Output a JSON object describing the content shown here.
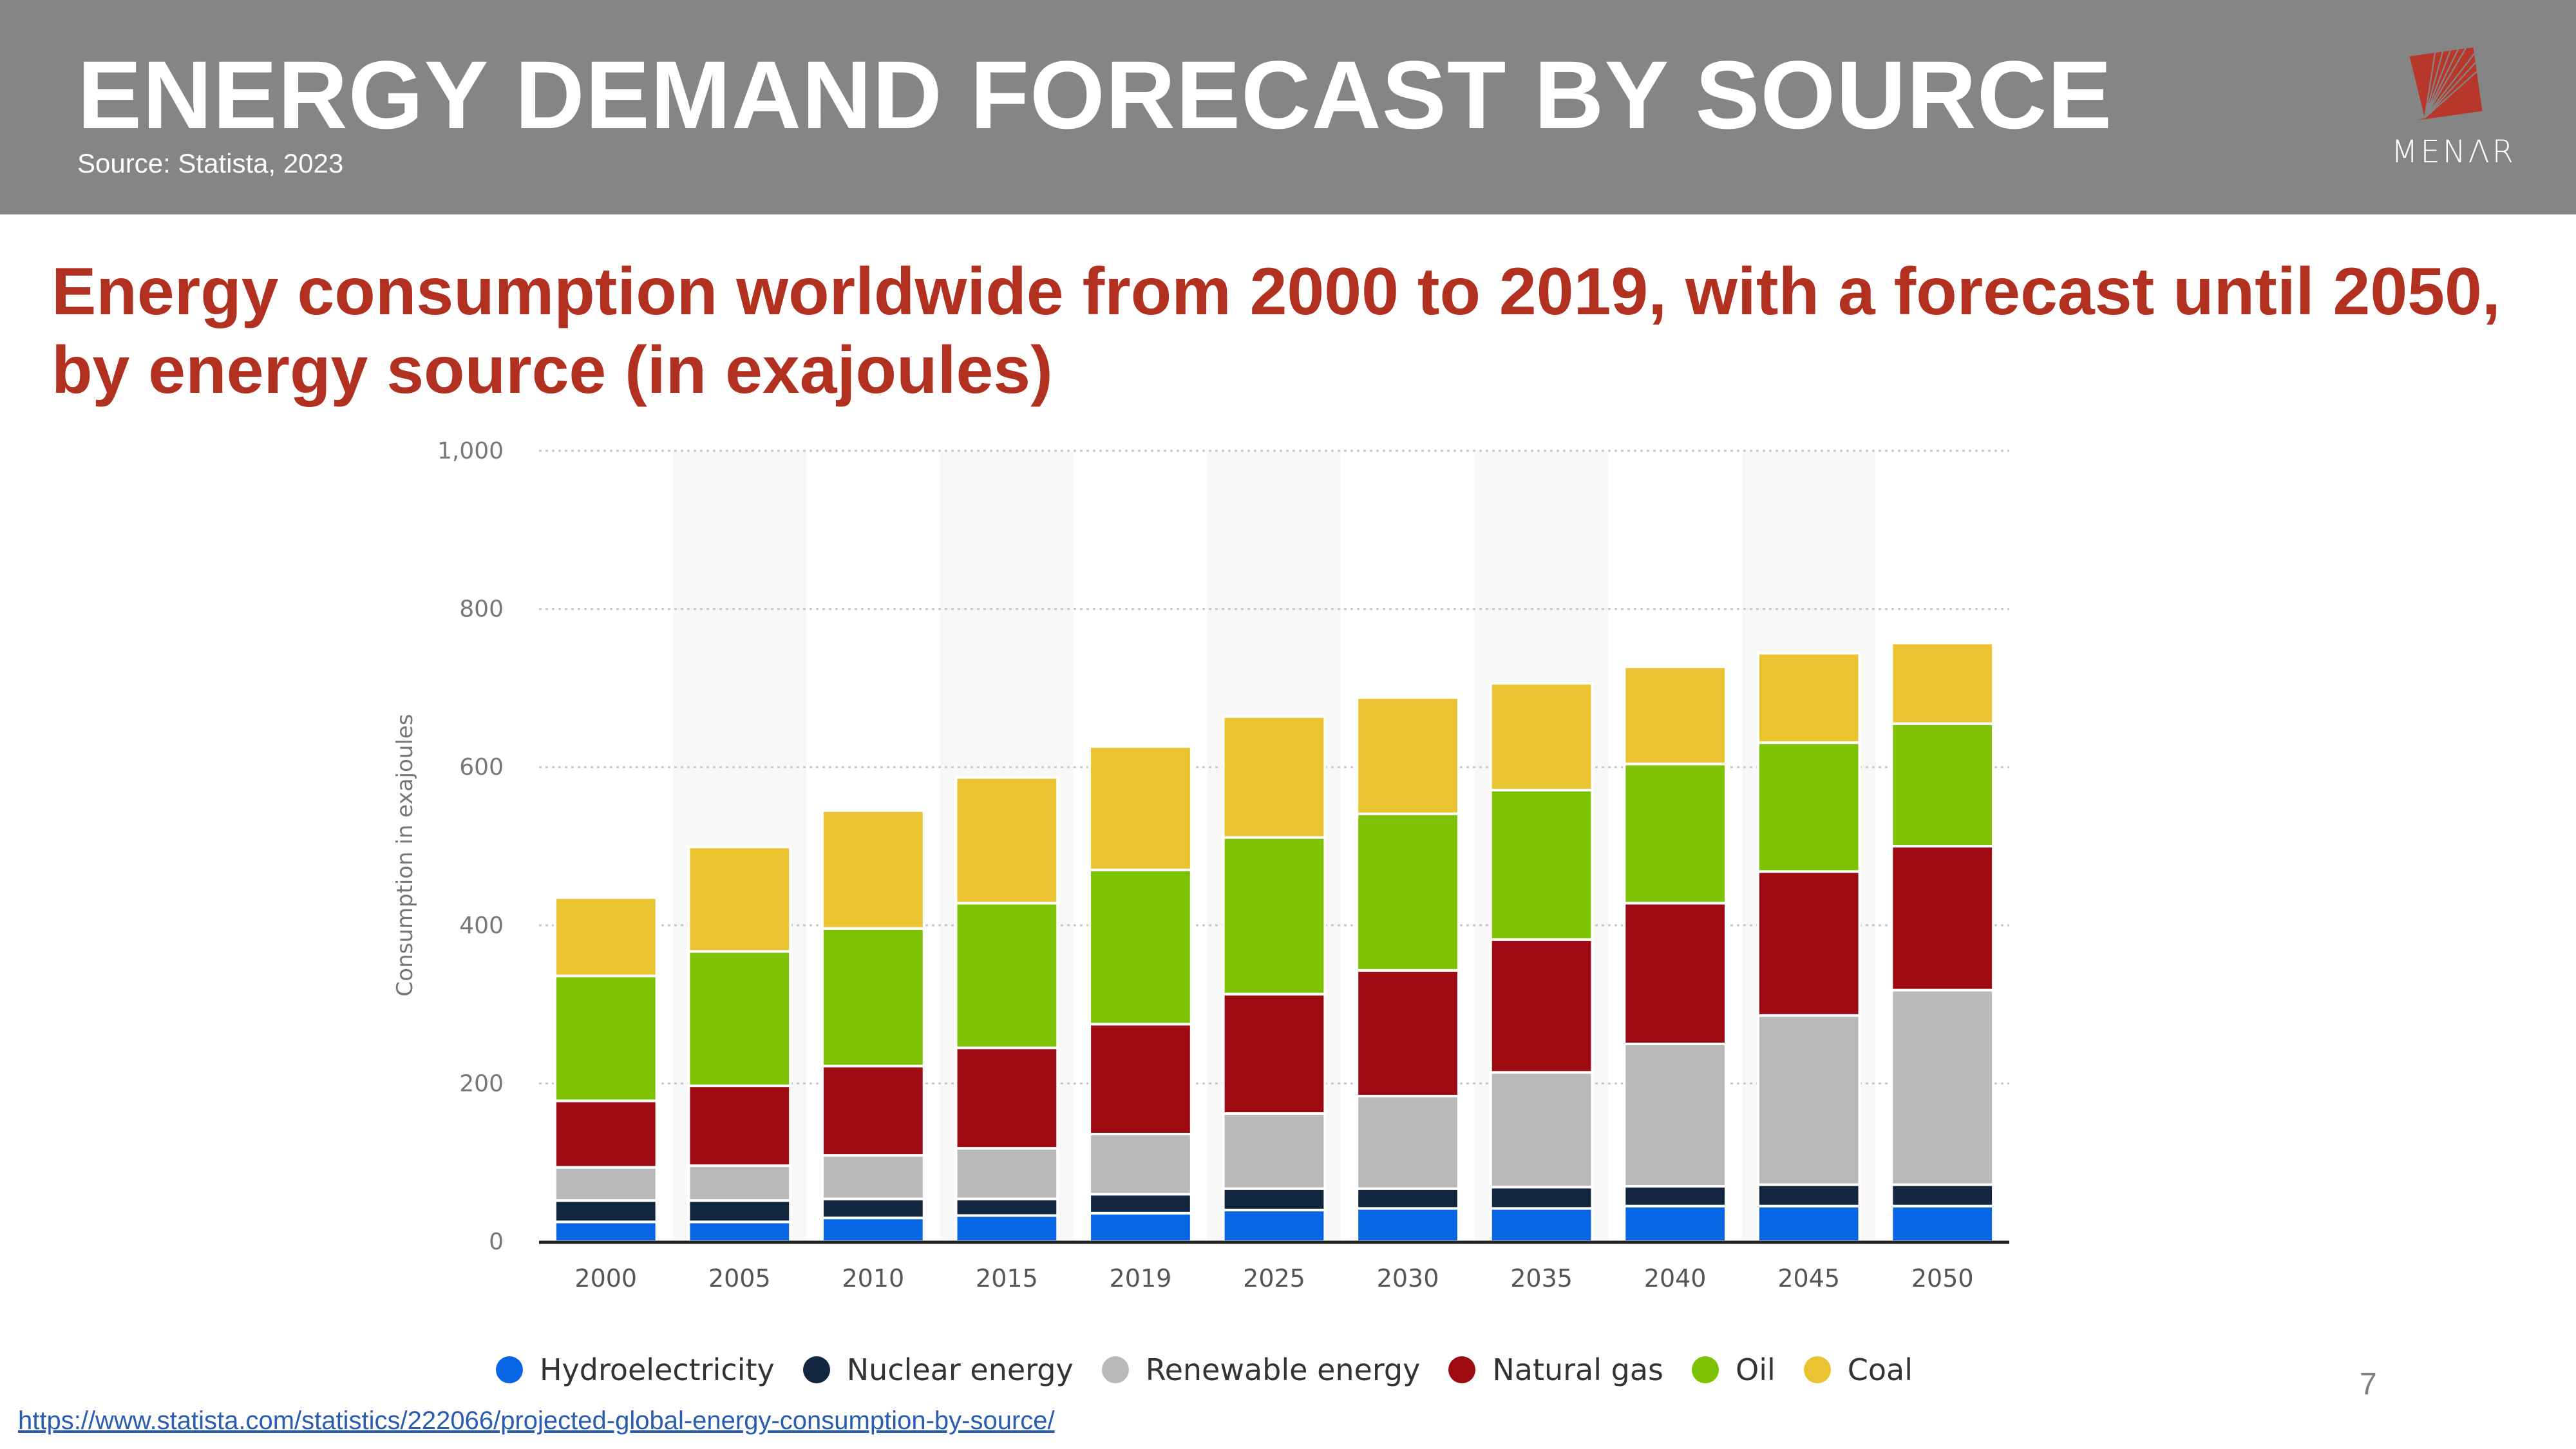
{
  "header": {
    "title": "ENERGY DEMAND FORECAST BY SOURCE",
    "source": "Source: Statista, 2023",
    "logo_text": "MENΛR",
    "logo_icon": "menar-logo-icon",
    "background_color": "#858585",
    "logo_color": "#b7382a"
  },
  "subtitle": "Energy consumption worldwide from 2000 to 2019, with a forecast until 2050, by energy source (in exajoules)",
  "footer": {
    "link": "https://www.statista.com/statistics/222066/projected-global-energy-consumption-by-source/",
    "page_number": "7"
  },
  "chart_data": {
    "type": "bar",
    "stacked": true,
    "title": "",
    "xlabel": "",
    "ylabel": "Consumption in exajoules",
    "ylim": [
      0,
      1000
    ],
    "yticks": [
      0,
      200,
      400,
      600,
      800,
      1000
    ],
    "ytick_labels": [
      "0",
      "200",
      "400",
      "600",
      "800",
      "1,000"
    ],
    "grid": true,
    "legend_position": "bottom",
    "categories": [
      "2000",
      "2005",
      "2010",
      "2015",
      "2019",
      "2025",
      "2030",
      "2035",
      "2040",
      "2045",
      "2050"
    ],
    "series": [
      {
        "name": "Hydroelectricity",
        "color": "#0866e4",
        "values": [
          25,
          25,
          30,
          33,
          36,
          40,
          42,
          42,
          45,
          45,
          45
        ]
      },
      {
        "name": "Nuclear energy",
        "color": "#12263f",
        "values": [
          27,
          27,
          24,
          21,
          24,
          27,
          25,
          27,
          25,
          27,
          27
        ]
      },
      {
        "name": "Renewable energy",
        "color": "#b9b9b9",
        "values": [
          42,
          44,
          55,
          64,
          76,
          95,
          117,
          145,
          180,
          214,
          246
        ]
      },
      {
        "name": "Natural gas",
        "color": "#9e0a11",
        "values": [
          84,
          101,
          113,
          127,
          139,
          151,
          159,
          168,
          178,
          182,
          182
        ]
      },
      {
        "name": "Oil",
        "color": "#7ec205",
        "values": [
          158,
          170,
          174,
          183,
          195,
          198,
          198,
          189,
          176,
          163,
          155
        ]
      },
      {
        "name": "Coal",
        "color": "#e9c330",
        "values": [
          99,
          132,
          149,
          159,
          156,
          153,
          147,
          135,
          123,
          113,
          102
        ]
      }
    ]
  }
}
